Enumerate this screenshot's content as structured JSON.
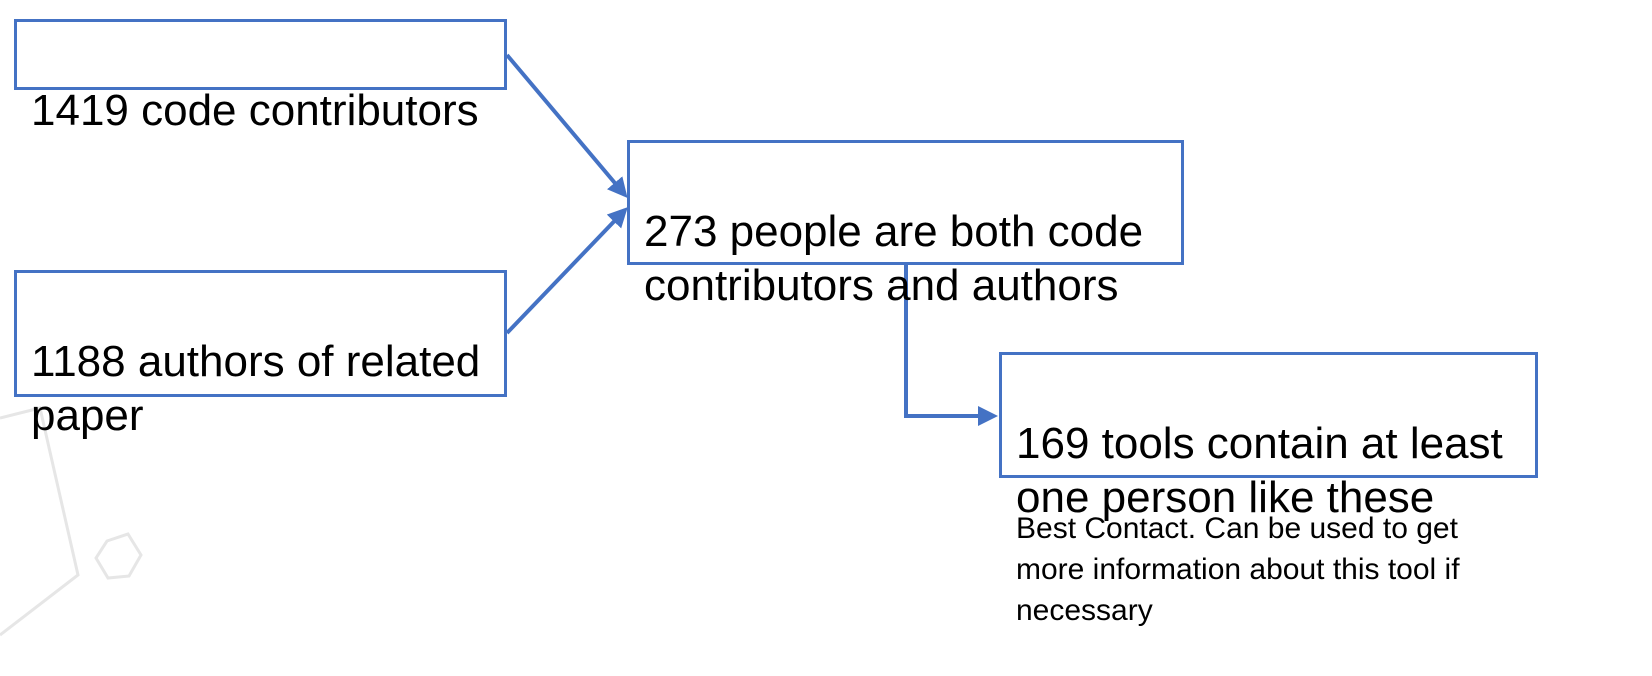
{
  "diagram": {
    "nodes": {
      "contributors": "1419 code contributors",
      "authors": "1188 authors of related\npaper",
      "both": "273 people are both code\ncontributors and authors",
      "tools": "169 tools contain at least\none person like these"
    },
    "note": "Best Contact. Can be used to get\nmore information about this tool if\nnecessary",
    "edges": [
      {
        "from": "contributors",
        "to": "both"
      },
      {
        "from": "authors",
        "to": "both"
      },
      {
        "from": "both",
        "to": "tools"
      }
    ]
  },
  "colors": {
    "box_border": "#4472c4",
    "arrow": "#4472c4",
    "decor": "#e6e6e6"
  }
}
